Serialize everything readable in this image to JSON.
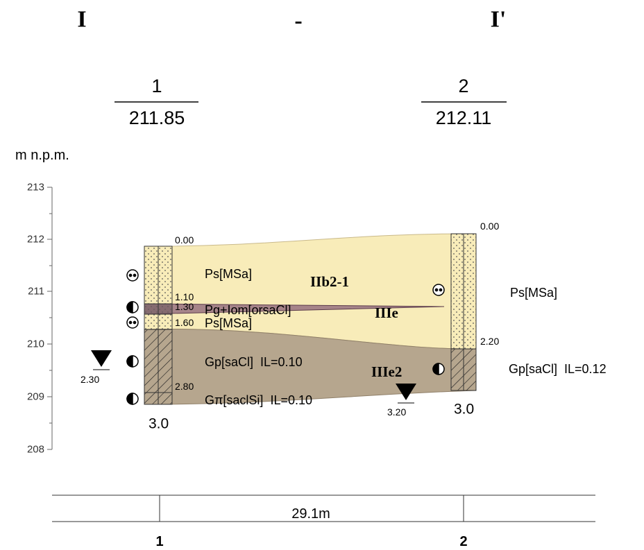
{
  "header": {
    "title_left": "I",
    "title_dash": "-",
    "title_right": "I'"
  },
  "boreholes": [
    {
      "number": "1",
      "elevation": "211.85",
      "depth": "3.0"
    },
    {
      "number": "2",
      "elevation": "212.11",
      "depth": "3.0"
    }
  ],
  "axis": {
    "unit": "m n.p.m.",
    "ticks": [
      "213",
      "212",
      "211",
      "210",
      "209",
      "208"
    ]
  },
  "depth_labels": [
    "0.00",
    "1.10",
    "1.30",
    "1.60",
    "2.80",
    "0.00",
    "2.20"
  ],
  "layer_labels": [
    "Ps[MSa]",
    "Pg+Iom[orsaCl]",
    "Ps[MSa]",
    "Gp[saCl]  IL=0.10",
    "Gπ[saclSi]  IL=0.10",
    "Ps[MSa]",
    "Gp[saCl]  IL=0.12"
  ],
  "unit_labels": [
    "IIb2-1",
    "IIIe",
    "IIIe2"
  ],
  "water_levels": [
    "2.30",
    "3.20"
  ],
  "distance": {
    "label": "29.1m",
    "points": [
      "1",
      "2"
    ]
  }
}
